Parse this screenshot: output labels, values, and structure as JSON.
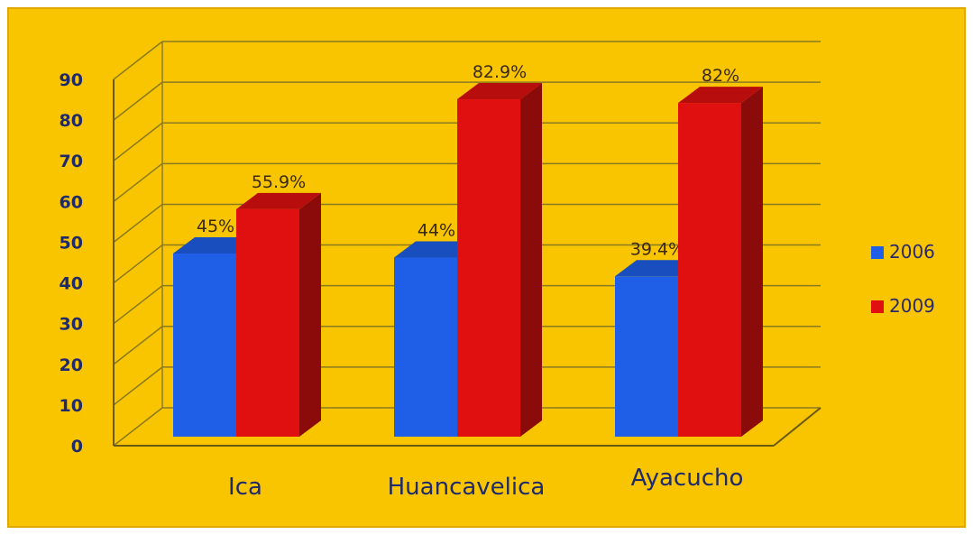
{
  "chart_data": {
    "type": "bar",
    "categories": [
      "Ica",
      "Huancavelica",
      "Ayacucho"
    ],
    "series": [
      {
        "name": "2006",
        "values": [
          45,
          44,
          39.4
        ],
        "labels": [
          "45%",
          "44%",
          "39.4%"
        ],
        "color": "#1f5fe8"
      },
      {
        "name": "2009",
        "values": [
          55.9,
          82.9,
          82
        ],
        "labels": [
          "55.9%",
          "82.9%",
          "82%"
        ],
        "color": "#e01010"
      }
    ],
    "y_ticks": [
      "0",
      "10",
      "20",
      "30",
      "40",
      "50",
      "60",
      "70",
      "80",
      "90"
    ],
    "ylim": [
      0,
      90
    ],
    "grid": true,
    "legend_position": "right",
    "style": "3d-column",
    "background_color": "#f9c400"
  }
}
